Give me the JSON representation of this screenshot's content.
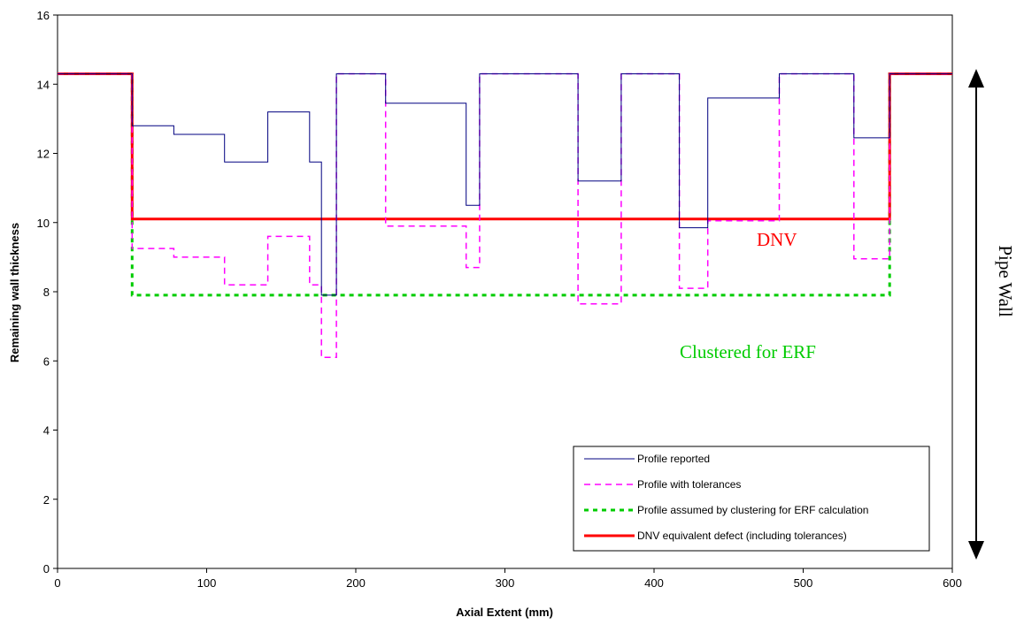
{
  "chart_data": {
    "type": "line",
    "xlabel": "Axial Extent (mm)",
    "ylabel": "Remaining wall thickness",
    "xlim": [
      0,
      600
    ],
    "ylim": [
      0,
      16
    ],
    "x_ticks": [
      "0",
      "100",
      "200",
      "300",
      "400",
      "500",
      "600"
    ],
    "y_ticks": [
      "0",
      "2",
      "4",
      "6",
      "8",
      "10",
      "12",
      "14",
      "16"
    ],
    "grid": false,
    "legend_position": "bottom-right",
    "series": [
      {
        "name": "Profile reported",
        "color": "#000080",
        "style": "solid-thin",
        "points": [
          [
            0,
            14.3
          ],
          [
            50,
            14.3
          ],
          [
            50,
            12.8
          ],
          [
            78,
            12.8
          ],
          [
            78,
            12.55
          ],
          [
            112,
            12.55
          ],
          [
            112,
            11.75
          ],
          [
            141,
            11.75
          ],
          [
            141,
            13.2
          ],
          [
            169,
            13.2
          ],
          [
            169,
            11.75
          ],
          [
            177,
            11.75
          ],
          [
            177,
            7.9
          ],
          [
            187,
            7.9
          ],
          [
            187,
            14.3
          ],
          [
            220,
            14.3
          ],
          [
            220,
            13.45
          ],
          [
            274,
            13.45
          ],
          [
            274,
            10.5
          ],
          [
            283,
            10.5
          ],
          [
            283,
            14.3
          ],
          [
            349,
            14.3
          ],
          [
            349,
            11.2
          ],
          [
            378,
            11.2
          ],
          [
            378,
            14.3
          ],
          [
            417,
            14.3
          ],
          [
            417,
            9.85
          ],
          [
            436,
            9.85
          ],
          [
            436,
            13.6
          ],
          [
            484,
            13.6
          ],
          [
            484,
            14.3
          ],
          [
            534,
            14.3
          ],
          [
            534,
            12.45
          ],
          [
            558,
            12.45
          ],
          [
            558,
            14.3
          ],
          [
            600,
            14.3
          ]
        ]
      },
      {
        "name": "Profile with tolerances",
        "color": "#ff00ff",
        "style": "dashed",
        "points": [
          [
            0,
            14.3
          ],
          [
            50,
            14.3
          ],
          [
            50,
            9.25
          ],
          [
            78,
            9.25
          ],
          [
            78,
            9.0
          ],
          [
            112,
            9.0
          ],
          [
            112,
            8.2
          ],
          [
            141,
            8.2
          ],
          [
            141,
            9.6
          ],
          [
            169,
            9.6
          ],
          [
            169,
            8.2
          ],
          [
            177,
            8.2
          ],
          [
            177,
            6.1
          ],
          [
            187,
            6.1
          ],
          [
            187,
            14.3
          ],
          [
            220,
            14.3
          ],
          [
            220,
            9.9
          ],
          [
            274,
            9.9
          ],
          [
            274,
            8.7
          ],
          [
            283,
            8.7
          ],
          [
            283,
            14.3
          ],
          [
            349,
            14.3
          ],
          [
            349,
            7.65
          ],
          [
            378,
            7.65
          ],
          [
            378,
            14.3
          ],
          [
            417,
            14.3
          ],
          [
            417,
            8.1
          ],
          [
            436,
            8.1
          ],
          [
            436,
            10.05
          ],
          [
            484,
            10.05
          ],
          [
            484,
            14.3
          ],
          [
            534,
            14.3
          ],
          [
            534,
            8.95
          ],
          [
            558,
            8.95
          ],
          [
            558,
            14.3
          ],
          [
            600,
            14.3
          ]
        ]
      },
      {
        "name": "Profile assumed by clustering for ERF calculation",
        "color": "#00cc00",
        "style": "dotted-thick",
        "points": [
          [
            0,
            14.3
          ],
          [
            50,
            14.3
          ],
          [
            50,
            7.9
          ],
          [
            558,
            7.9
          ],
          [
            558,
            14.3
          ],
          [
            600,
            14.3
          ]
        ]
      },
      {
        "name": "DNV equivalent defect (including tolerances)",
        "color": "#ff0000",
        "style": "solid-thick",
        "points": [
          [
            0,
            14.3
          ],
          [
            50,
            14.3
          ],
          [
            50,
            10.1
          ],
          [
            558,
            10.1
          ],
          [
            558,
            14.3
          ],
          [
            600,
            14.3
          ]
        ]
      }
    ],
    "annotations": [
      {
        "text": "DNV",
        "x": 505,
        "y": 9.5,
        "color": "#ff0000"
      },
      {
        "text": "Clustered for ERF",
        "x": 525,
        "y": 7.2,
        "color": "#00cc00"
      },
      {
        "text": "Pipe Wall",
        "x": 630,
        "y": 9.5,
        "color": "#000000"
      }
    ]
  }
}
